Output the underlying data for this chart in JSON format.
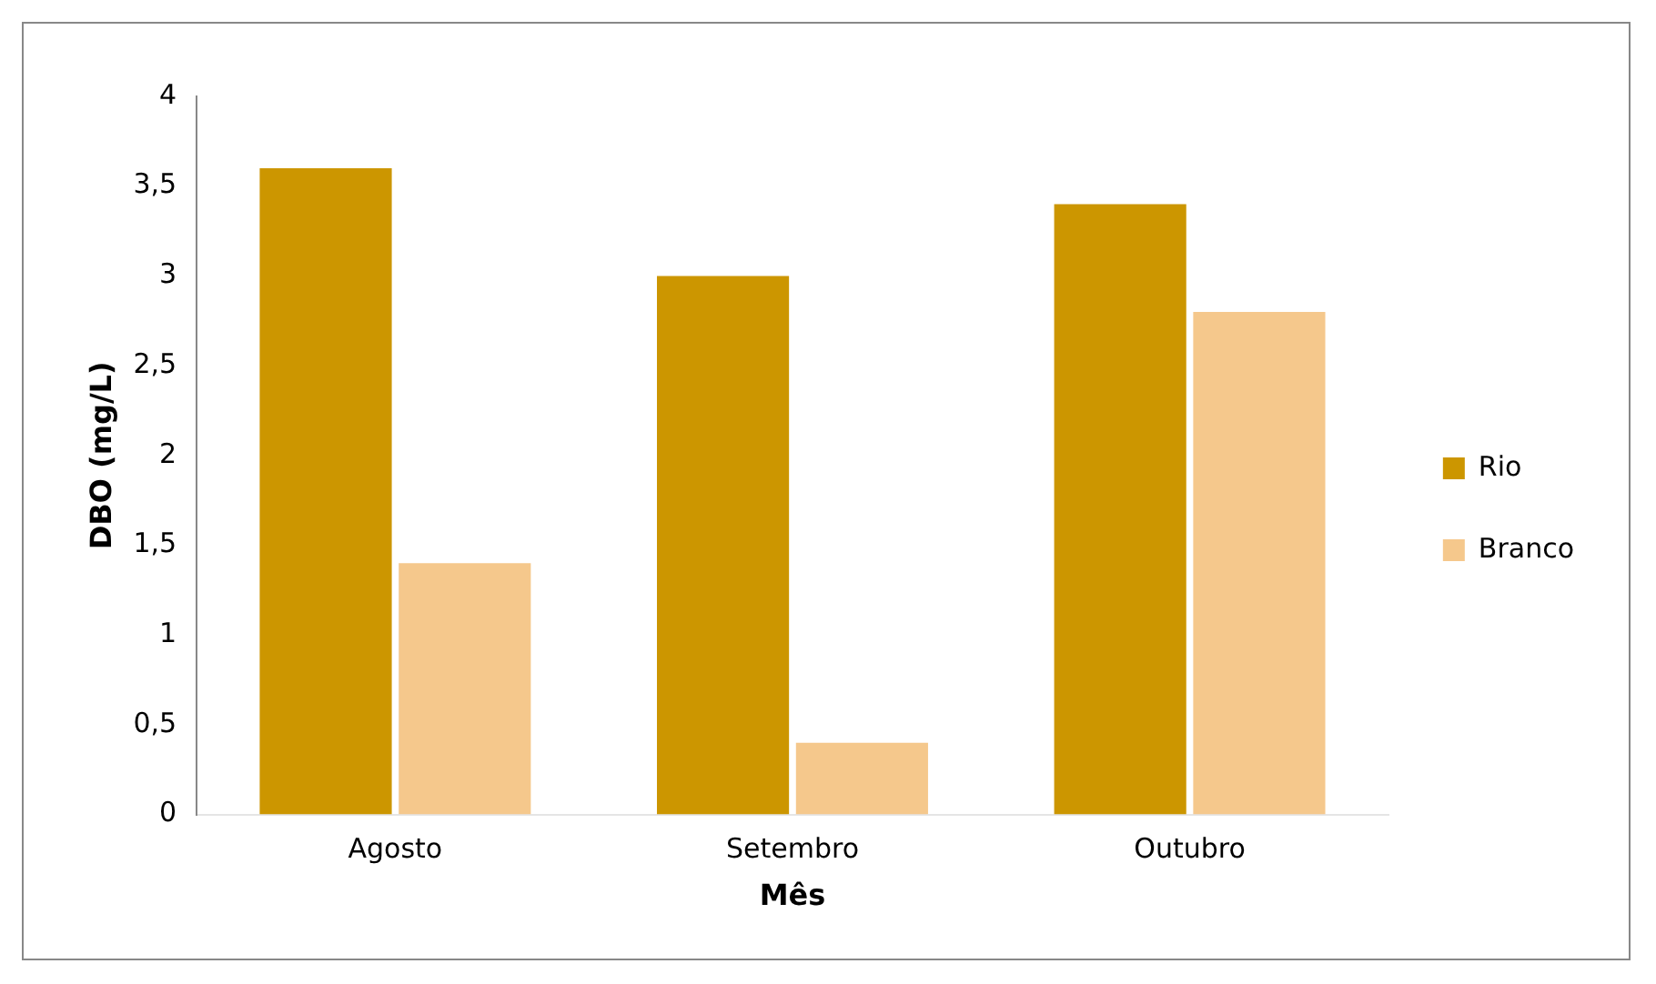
{
  "chart_data": {
    "type": "bar",
    "xlabel": "Mês",
    "ylabel": "DBO (mg/L)",
    "categories": [
      "Agosto",
      "Setembro",
      "Outubro"
    ],
    "series": [
      {
        "name": "Rio",
        "color": "#cc9600",
        "values": [
          3.6,
          3.0,
          3.4
        ]
      },
      {
        "name": "Branco",
        "color": "#f5c88c",
        "values": [
          1.4,
          0.4,
          2.8
        ]
      }
    ],
    "ylim": [
      0,
      4
    ],
    "yticks": [
      0,
      {
        "value": 0.5,
        "label": "0,5"
      },
      1,
      {
        "value": 1.5,
        "label": "1,5"
      },
      2,
      {
        "value": 2.5,
        "label": "2,5"
      },
      3,
      {
        "value": 3.5,
        "label": "3,5"
      },
      4
    ],
    "grid": false,
    "legend": "right"
  }
}
